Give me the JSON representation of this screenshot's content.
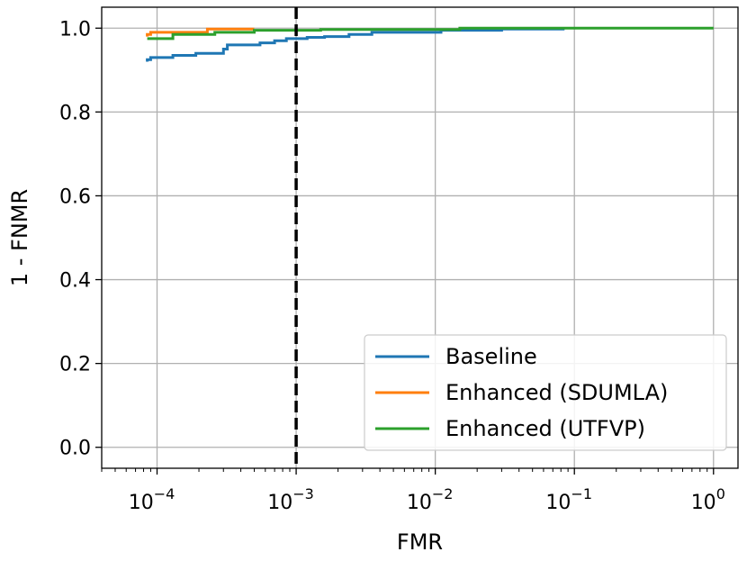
{
  "chart_data": {
    "type": "line",
    "title": "",
    "xlabel": "FMR",
    "ylabel": "1 - FNMR",
    "xscale": "log",
    "xlim": [
      4e-05,
      1.5
    ],
    "ylim": [
      -0.05,
      1.05
    ],
    "x_ticks": [
      {
        "value": 0.0001,
        "base": "10",
        "exp": "−4"
      },
      {
        "value": 0.001,
        "base": "10",
        "exp": "−3"
      },
      {
        "value": 0.01,
        "base": "10",
        "exp": "−2"
      },
      {
        "value": 0.1,
        "base": "10",
        "exp": "−1"
      },
      {
        "value": 1,
        "base": "10",
        "exp": "0"
      }
    ],
    "y_ticks": [
      {
        "value": 0.0,
        "label": "0.0"
      },
      {
        "value": 0.2,
        "label": "0.2"
      },
      {
        "value": 0.4,
        "label": "0.4"
      },
      {
        "value": 0.6,
        "label": "0.6"
      },
      {
        "value": 0.8,
        "label": "0.8"
      },
      {
        "value": 1.0,
        "label": "1.0"
      }
    ],
    "grid": true,
    "legend_position": "lower-right",
    "reference_line": {
      "x": 0.001,
      "style": "dashed",
      "color": "#000000"
    },
    "series": [
      {
        "name": "Baseline",
        "color": "#1f77b4",
        "x": [
          8.5e-05,
          8.5e-05,
          9e-05,
          9e-05,
          0.00013,
          0.00013,
          0.00019,
          0.00019,
          0.0003,
          0.0003,
          0.00032,
          0.00032,
          0.00055,
          0.00055,
          0.0007,
          0.0007,
          0.00085,
          0.00085,
          0.0012,
          0.0012,
          0.0016,
          0.0016,
          0.0024,
          0.0024,
          0.0035,
          0.0035,
          0.011,
          0.011,
          0.03,
          0.03,
          0.085
        ],
        "y": [
          0.92,
          0.925,
          0.925,
          0.93,
          0.93,
          0.935,
          0.935,
          0.94,
          0.94,
          0.95,
          0.95,
          0.96,
          0.96,
          0.965,
          0.965,
          0.97,
          0.97,
          0.975,
          0.975,
          0.978,
          0.978,
          0.98,
          0.98,
          0.985,
          0.985,
          0.99,
          0.99,
          0.995,
          0.995,
          0.998,
          0.998
        ]
      },
      {
        "name": "Enhanced (SDUMLA)",
        "color": "#ff7f0e",
        "x": [
          8.5e-05,
          8.5e-05,
          9e-05,
          9e-05,
          0.00023,
          0.00023,
          0.0005
        ],
        "y": [
          0.98,
          0.985,
          0.985,
          0.99,
          0.99,
          0.998,
          0.998
        ]
      },
      {
        "name": "Enhanced (UTFVP)",
        "color": "#2ca02c",
        "x": [
          8.5e-05,
          8.5e-05,
          0.00013,
          0.00013,
          0.00026,
          0.00026,
          0.0005,
          0.0005,
          0.0015,
          0.0015,
          0.015,
          0.015,
          1.0
        ],
        "y": [
          0.975,
          0.975,
          0.975,
          0.985,
          0.985,
          0.99,
          0.99,
          0.995,
          0.995,
          0.997,
          0.997,
          1.0,
          1.0
        ]
      }
    ]
  }
}
